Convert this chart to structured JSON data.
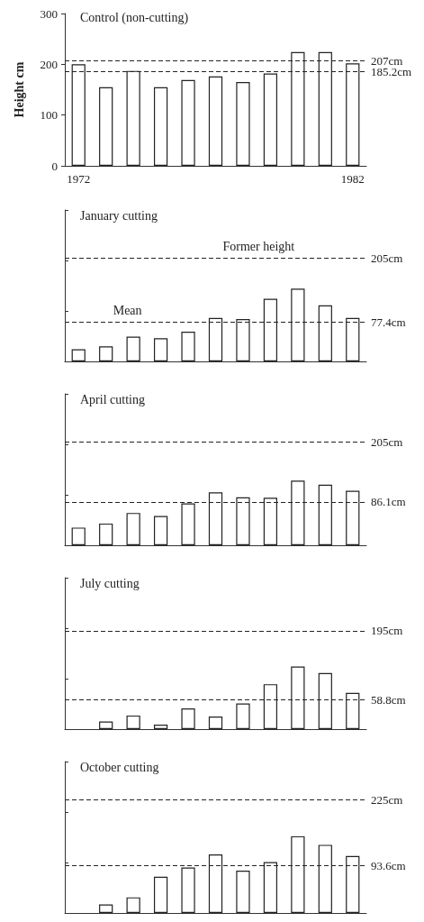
{
  "chart_data": [
    {
      "type": "bar",
      "title": "Control (non-cutting)",
      "ylabel": "Height cm",
      "categories": [
        "1972",
        null,
        null,
        null,
        null,
        null,
        null,
        null,
        null,
        null,
        "1982"
      ],
      "values": [
        200,
        155,
        187,
        155,
        169,
        176,
        165,
        182,
        224,
        224,
        202
      ],
      "color": "#ffffff",
      "ylim": [
        0,
        300
      ],
      "yticks": [
        0,
        100,
        200,
        300
      ],
      "grid": false,
      "ref_lines": [
        {
          "axis": "y",
          "value": 207,
          "label": "207cm",
          "line_style": "dashed"
        },
        {
          "axis": "y",
          "value": 185.2,
          "label": "185.2cm",
          "line_style": "dashed"
        }
      ]
    },
    {
      "type": "bar",
      "title": "January cutting",
      "categories": [
        null,
        null,
        null,
        null,
        null,
        null,
        null,
        null,
        null,
        null,
        null
      ],
      "values": [
        24,
        30,
        49,
        46,
        59,
        86,
        84,
        124,
        144,
        111,
        86
      ],
      "color": "#ffffff",
      "ylim": [
        0,
        300
      ],
      "yticks": [
        {
          "value": 0,
          "label": null
        },
        {
          "value": 100,
          "label": null
        },
        {
          "value": 200,
          "label": null
        },
        {
          "value": 300,
          "label": null
        }
      ],
      "grid": false,
      "ref_lines": [
        {
          "axis": "y",
          "value": 205,
          "label": "205cm",
          "line_style": "dashed"
        },
        {
          "axis": "y",
          "value": 77.4,
          "label": "77.4cm",
          "line_style": "dashed"
        }
      ],
      "annotations": [
        "Former height",
        "Mean"
      ]
    },
    {
      "type": "bar",
      "title": "April cutting",
      "categories": [
        null,
        null,
        null,
        null,
        null,
        null,
        null,
        null,
        null,
        null,
        null
      ],
      "values": [
        35,
        43,
        64,
        58,
        83,
        105,
        95,
        94,
        128,
        120,
        108
      ],
      "color": "#ffffff",
      "ylim": [
        0,
        300
      ],
      "yticks": [
        {
          "value": 0,
          "label": null
        },
        {
          "value": 100,
          "label": null
        },
        {
          "value": 200,
          "label": null
        },
        {
          "value": 300,
          "label": null
        }
      ],
      "grid": false,
      "ref_lines": [
        {
          "axis": "y",
          "value": 205,
          "label": "205cm",
          "line_style": "dashed"
        },
        {
          "axis": "y",
          "value": 86.1,
          "label": "86.1cm",
          "line_style": "dashed"
        }
      ]
    },
    {
      "type": "bar",
      "title": "July cutting",
      "categories": [
        null,
        null,
        null,
        null,
        null,
        null,
        null,
        null,
        null,
        null,
        null
      ],
      "values": [
        null,
        15,
        27,
        9,
        41,
        25,
        51,
        89,
        124,
        111,
        72
      ],
      "color": "#ffffff",
      "ylim": [
        0,
        300
      ],
      "yticks": [
        {
          "value": 0,
          "label": null
        },
        {
          "value": 100,
          "label": null
        },
        {
          "value": 200,
          "label": null
        },
        {
          "value": 300,
          "label": null
        }
      ],
      "grid": false,
      "ref_lines": [
        {
          "axis": "y",
          "value": 195,
          "label": "195cm",
          "line_style": "dashed"
        },
        {
          "axis": "y",
          "value": 58.8,
          "label": "58.8cm",
          "line_style": "dashed"
        }
      ]
    },
    {
      "type": "bar",
      "title": "October cutting",
      "categories": [
        null,
        null,
        null,
        null,
        null,
        null,
        null,
        null,
        null,
        null,
        null
      ],
      "values": [
        null,
        17,
        31,
        72,
        90,
        116,
        84,
        101,
        152,
        135,
        113
      ],
      "color": "#ffffff",
      "ylim": [
        0,
        300
      ],
      "yticks": [
        {
          "value": 0,
          "label": null
        },
        {
          "value": 100,
          "label": null
        },
        {
          "value": 200,
          "label": null
        },
        {
          "value": 300,
          "label": null
        }
      ],
      "grid": false,
      "ref_lines": [
        {
          "axis": "y",
          "value": 225,
          "label": "225cm",
          "line_style": "dashed"
        },
        {
          "axis": "y",
          "value": 93.6,
          "label": "93.6cm",
          "line_style": "dashed"
        }
      ]
    }
  ]
}
